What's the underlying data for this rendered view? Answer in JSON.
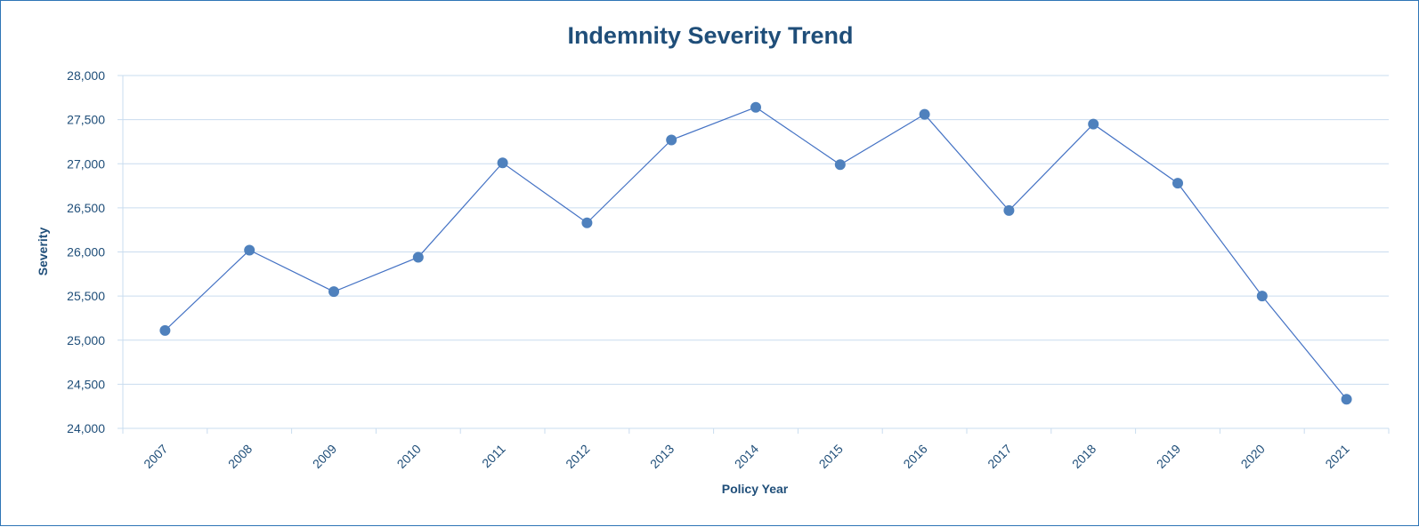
{
  "chart_data": {
    "type": "line",
    "title": "Indemnity Severity Trend",
    "xlabel": "Policy Year",
    "ylabel": "Severity",
    "categories": [
      "2007",
      "2008",
      "2009",
      "2010",
      "2011",
      "2012",
      "2013",
      "2014",
      "2015",
      "2016",
      "2017",
      "2018",
      "2019",
      "2020",
      "2021"
    ],
    "series": [
      {
        "values": [
          25110,
          26020,
          25550,
          25940,
          27010,
          26330,
          27270,
          27640,
          26990,
          27560,
          26470,
          27450,
          26780,
          25500,
          24330
        ]
      }
    ],
    "ylim": [
      24000,
      28000
    ],
    "yticks": [
      24000,
      24500,
      25000,
      25500,
      26000,
      26500,
      27000,
      27500,
      28000
    ],
    "ytick_labels": [
      "24,000",
      "24,500",
      "25,000",
      "25,500",
      "26,000",
      "26,500",
      "27,000",
      "27,500",
      "28,000"
    ],
    "grid": true,
    "legend": "none",
    "colors": {
      "line": "#4472c4",
      "marker": "#4f81bd",
      "grid": "#c9dcef",
      "axis_text": "#1f4e79",
      "border": "#2e75b6"
    }
  }
}
